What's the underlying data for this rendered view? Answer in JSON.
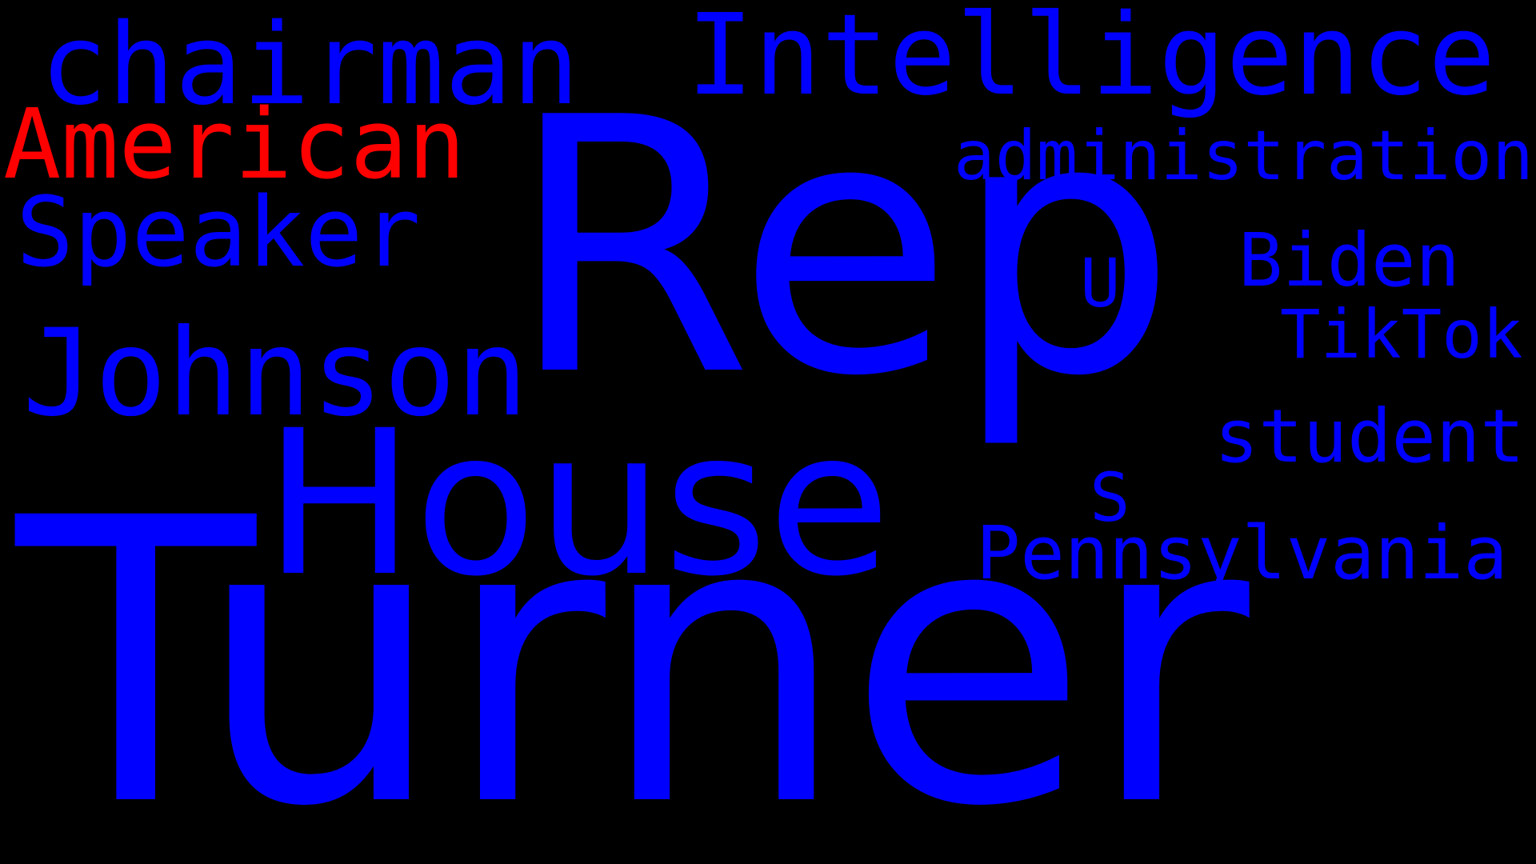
{
  "cloud": {
    "background": "#000000",
    "primary_color": "#0000ff",
    "accent_color": "#ff0000",
    "words": {
      "turner": "Turner",
      "rep": "Rep",
      "house": "House",
      "johnson": "Johnson",
      "speaker": "Speaker",
      "american": "American",
      "chairman": "chairman",
      "intelligence": "Intelligence",
      "administration": "administration",
      "biden": "Biden",
      "u": "U",
      "tiktok": "TikTok",
      "student": "student",
      "s": "S",
      "pennsylvania": "Pennsylvania"
    }
  }
}
